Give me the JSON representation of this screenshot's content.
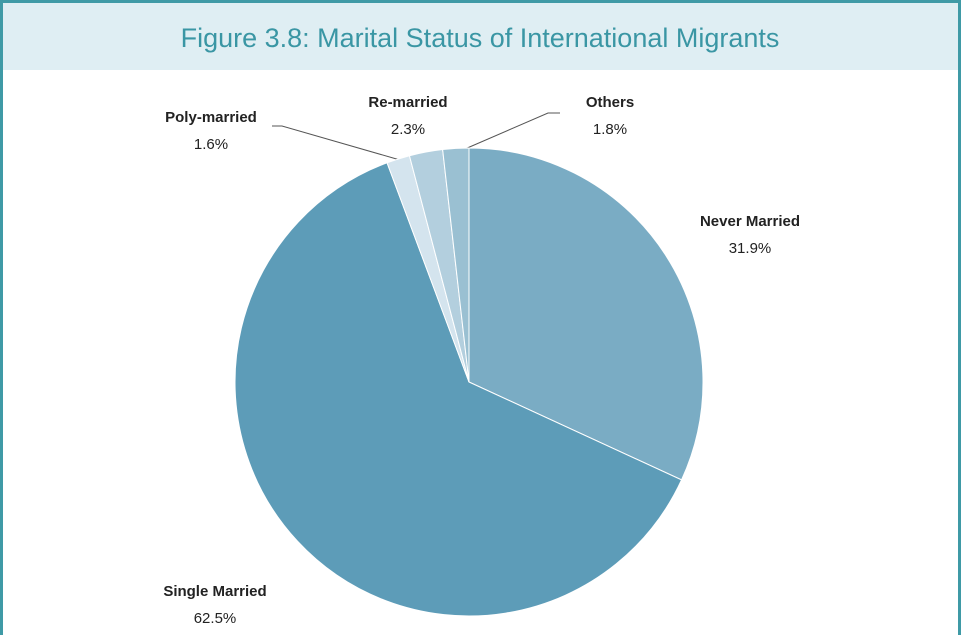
{
  "chart_data": {
    "type": "pie",
    "title": "Figure 3.8: Marital Status of International Migrants",
    "categories": [
      "Never Married",
      "Single Married",
      "Poly-married",
      "Re-married",
      "Others"
    ],
    "values": [
      31.9,
      62.5,
      1.6,
      2.3,
      1.8
    ],
    "value_labels": [
      "31.9%",
      "62.5%",
      "1.6%",
      "2.3%",
      "1.8%"
    ],
    "colors": [
      "#7aacc4",
      "#5d9cb8",
      "#d4e4ee",
      "#b3cfde",
      "#9ac0d2"
    ]
  }
}
